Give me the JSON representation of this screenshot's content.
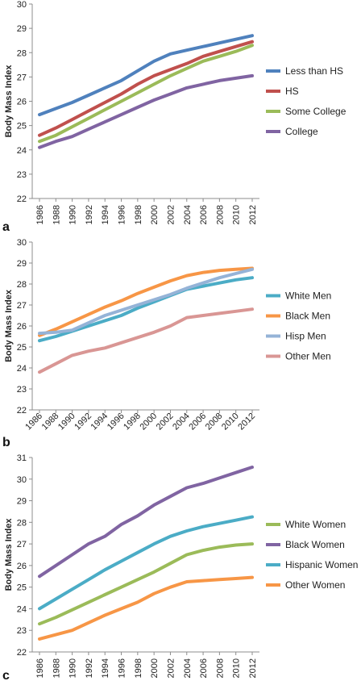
{
  "chart_data": [
    {
      "type": "line",
      "panel_label": "a",
      "ylabel": "Body Mass Index",
      "ylim": [
        22,
        30
      ],
      "yticks": [
        22,
        23,
        24,
        25,
        26,
        27,
        28,
        29,
        30
      ],
      "x": [
        1986,
        1988,
        1990,
        1992,
        1994,
        1996,
        1998,
        2000,
        2002,
        2004,
        2006,
        2008,
        2010,
        2012
      ],
      "xtick_rotation": -90,
      "legend_position": "right",
      "series": [
        {
          "name": "Less than HS",
          "color": "#4F81BD",
          "values": [
            25.45,
            25.7,
            25.95,
            26.25,
            26.55,
            26.85,
            27.25,
            27.65,
            27.95,
            28.1,
            28.25,
            28.4,
            28.55,
            28.7
          ]
        },
        {
          "name": "HS",
          "color": "#C0504D",
          "values": [
            24.6,
            24.9,
            25.25,
            25.6,
            25.95,
            26.3,
            26.7,
            27.05,
            27.3,
            27.55,
            27.85,
            28.05,
            28.25,
            28.45
          ]
        },
        {
          "name": "Some College",
          "color": "#9BBB59",
          "values": [
            24.35,
            24.6,
            24.95,
            25.3,
            25.65,
            26.0,
            26.35,
            26.7,
            27.05,
            27.35,
            27.65,
            27.85,
            28.05,
            28.3
          ]
        },
        {
          "name": "College",
          "color": "#8064A2",
          "values": [
            24.1,
            24.35,
            24.55,
            24.85,
            25.15,
            25.45,
            25.75,
            26.05,
            26.3,
            26.55,
            26.7,
            26.85,
            26.95,
            27.05
          ]
        }
      ]
    },
    {
      "type": "line",
      "panel_label": "b",
      "ylabel": "Body Mass Index",
      "ylim": [
        22,
        30
      ],
      "yticks": [
        22,
        23,
        24,
        25,
        26,
        27,
        28,
        29,
        30
      ],
      "x": [
        1986,
        1988,
        1990,
        1992,
        1994,
        1996,
        1998,
        2000,
        2002,
        2004,
        2006,
        2008,
        2010,
        2012
      ],
      "xtick_rotation": -45,
      "legend_position": "right",
      "series": [
        {
          "name": "White Men",
          "color": "#4BACC6",
          "values": [
            25.3,
            25.5,
            25.75,
            26.0,
            26.25,
            26.5,
            26.85,
            27.15,
            27.45,
            27.75,
            27.9,
            28.05,
            28.2,
            28.3
          ]
        },
        {
          "name": "Black Men",
          "color": "#F79646",
          "values": [
            25.55,
            25.85,
            26.2,
            26.55,
            26.9,
            27.2,
            27.55,
            27.85,
            28.15,
            28.4,
            28.55,
            28.65,
            28.7,
            28.75
          ]
        },
        {
          "name": "Hisp Men",
          "color": "#95B3D7",
          "values": [
            25.65,
            25.7,
            25.8,
            26.15,
            26.5,
            26.75,
            27.0,
            27.25,
            27.5,
            27.8,
            28.05,
            28.3,
            28.5,
            28.7
          ]
        },
        {
          "name": "Other Men",
          "color": "#D99694",
          "values": [
            23.8,
            24.2,
            24.6,
            24.8,
            24.95,
            25.2,
            25.45,
            25.7,
            26.0,
            26.4,
            26.5,
            26.6,
            26.7,
            26.8
          ]
        }
      ]
    },
    {
      "type": "line",
      "panel_label": "c",
      "ylabel": "Body Mass Index",
      "ylim": [
        22,
        31
      ],
      "yticks": [
        22,
        23,
        24,
        25,
        26,
        27,
        28,
        29,
        30,
        31
      ],
      "x": [
        1986,
        1988,
        1990,
        1992,
        1994,
        1996,
        1998,
        2000,
        2002,
        2004,
        2006,
        2008,
        2010,
        2012
      ],
      "xtick_rotation": -90,
      "legend_position": "right",
      "series": [
        {
          "name": "White Women",
          "color": "#9BBB59",
          "values": [
            23.3,
            23.6,
            23.95,
            24.3,
            24.65,
            25.0,
            25.35,
            25.7,
            26.1,
            26.5,
            26.7,
            26.85,
            26.95,
            27.0
          ]
        },
        {
          "name": "Black Women",
          "color": "#8064A2",
          "values": [
            25.5,
            26.0,
            26.5,
            27.0,
            27.35,
            27.9,
            28.3,
            28.8,
            29.2,
            29.6,
            29.8,
            30.05,
            30.3,
            30.55
          ]
        },
        {
          "name": "Hispanic Women",
          "color": "#4BACC6",
          "values": [
            24.0,
            24.45,
            24.9,
            25.35,
            25.8,
            26.2,
            26.6,
            27.0,
            27.35,
            27.6,
            27.8,
            27.95,
            28.1,
            28.25
          ]
        },
        {
          "name": "Other Women",
          "color": "#F79646",
          "values": [
            22.6,
            22.8,
            23.0,
            23.35,
            23.7,
            24.0,
            24.3,
            24.7,
            25.0,
            25.25,
            25.3,
            25.35,
            25.4,
            25.45
          ]
        }
      ]
    }
  ]
}
